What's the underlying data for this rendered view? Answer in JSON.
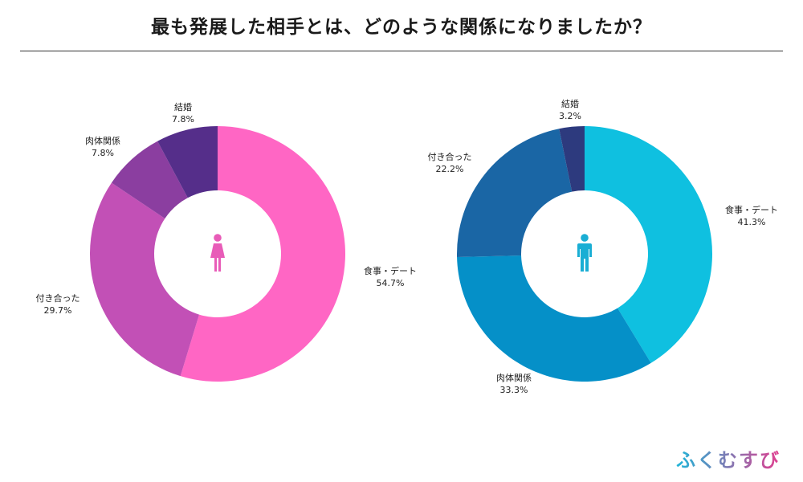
{
  "header": {
    "title": "最も発展した相手とは、どのような関係になりましたか？"
  },
  "brand": {
    "logo_text": "ふくむすび"
  },
  "chart_data": [
    {
      "type": "pie",
      "variant": "donut",
      "center_icon": "female-icon",
      "icon_color": "#e85cb8",
      "slices": [
        {
          "label": "食事・デート",
          "value": 54.7,
          "display": "54.7%",
          "color": "#ff66c4"
        },
        {
          "label": "付き合った",
          "value": 29.7,
          "display": "29.7%",
          "color": "#c250b6"
        },
        {
          "label": "肉体関係",
          "value": 7.8,
          "display": "7.8%",
          "color": "#8b3ea0"
        },
        {
          "label": "結婚",
          "value": 7.8,
          "display": "7.8%",
          "color": "#552e8a"
        }
      ]
    },
    {
      "type": "pie",
      "variant": "donut",
      "center_icon": "male-icon",
      "icon_color": "#1aaed4",
      "slices": [
        {
          "label": "食事・デート",
          "value": 41.3,
          "display": "41.3%",
          "color": "#0fc0e0"
        },
        {
          "label": "肉体関係",
          "value": 33.3,
          "display": "33.3%",
          "color": "#0590c8"
        },
        {
          "label": "付き合った",
          "value": 22.2,
          "display": "22.2%",
          "color": "#1a66a5"
        },
        {
          "label": "結婚",
          "value": 3.2,
          "display": "3.2%",
          "color": "#2d3a7e"
        }
      ]
    }
  ]
}
